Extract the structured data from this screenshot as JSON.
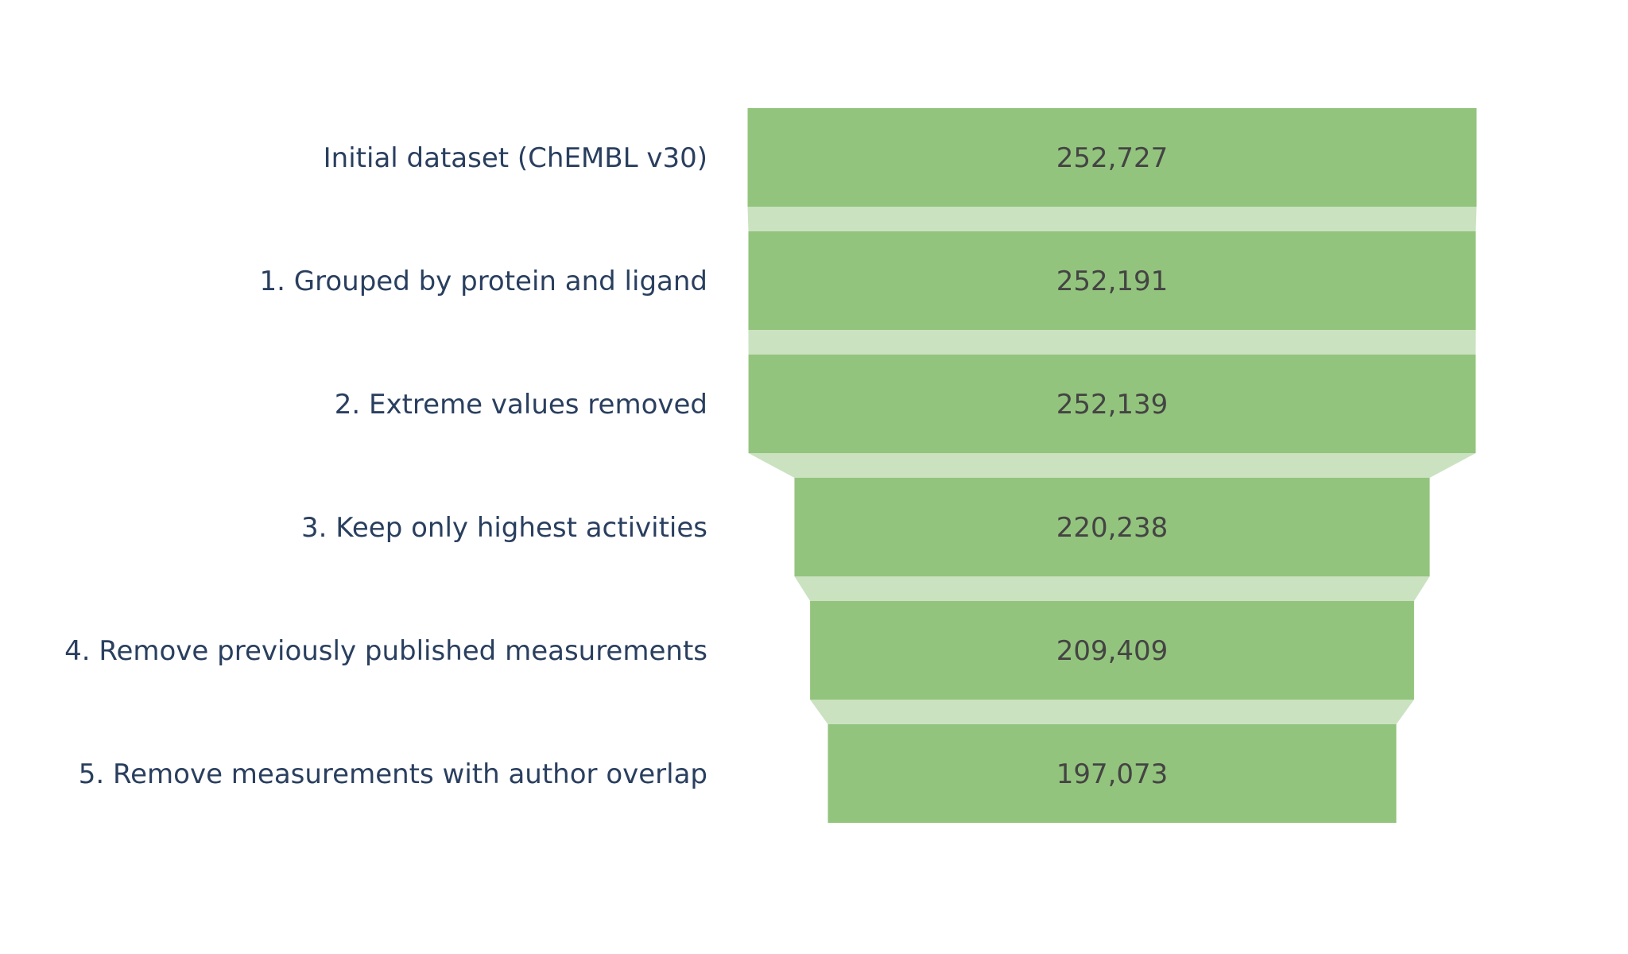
{
  "chart_data": {
    "type": "funnel",
    "title": "",
    "stages": [
      "Initial dataset (ChEMBL v30)",
      "1. Grouped by protein and ligand",
      "2. Extreme values removed",
      "3. Keep only highest activities",
      "4. Remove previously published measurements",
      "5. Remove measurements with author overlap"
    ],
    "values": [
      252727,
      252191,
      252139,
      220238,
      209409,
      197073
    ],
    "value_labels": [
      "252,727",
      "252,191",
      "252,139",
      "220,238",
      "209,409",
      "197,073"
    ],
    "colors": {
      "bar": "#93c47d",
      "connector": "#cae2c0",
      "stage_text": "#2a3f5f",
      "value_text": "#444444"
    }
  }
}
